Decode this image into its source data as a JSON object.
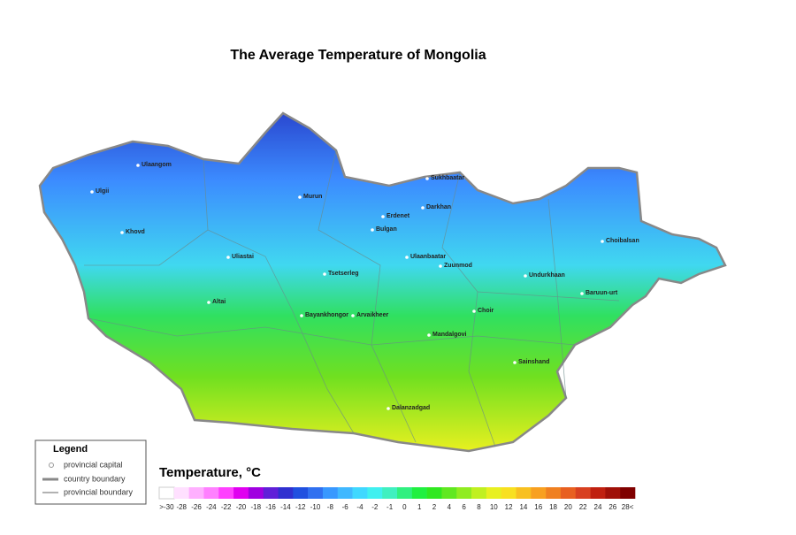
{
  "title": "The Average Temperature of Mongolia",
  "cities": [
    "Ulaangom",
    "Ulgii",
    "Khovd",
    "Uliastai",
    "Altai",
    "Murun",
    "Bulgan",
    "Erdenet",
    "Darkhan",
    "Sukhbaatar",
    "Ulaanbaatar",
    "Zuunmod",
    "Tsetserleg",
    "Bayankhongor",
    "Arvaikheer",
    "Undurkhaan",
    "Choibalsan",
    "Baruun-urt",
    "Choir",
    "Mandalgovi",
    "Sainshand",
    "Dalanzadgad"
  ],
  "legend": {
    "title": "Legend",
    "items": [
      "provincial capital",
      "country boundary",
      "provincial boundary"
    ]
  },
  "colorbar": {
    "title": "Temperature, °C",
    "labels": [
      ">-30",
      "-28",
      "-26",
      "-24",
      "-22",
      "-20",
      "-18",
      "-16",
      "-14",
      "-12",
      "-10",
      "-8",
      "-6",
      "-4",
      "-2",
      "-1",
      "0",
      "1",
      "2",
      "4",
      "6",
      "8",
      "10",
      "12",
      "14",
      "16",
      "18",
      "20",
      "22",
      "24",
      "26",
      "28<"
    ],
    "colors": [
      "#ffffff",
      "#ffe0ff",
      "#ffb0ff",
      "#ff80ff",
      "#ff40ff",
      "#e000f0",
      "#a000e0",
      "#6020d8",
      "#3030d0",
      "#2050e0",
      "#3070f0",
      "#3898ff",
      "#40b8ff",
      "#40d8ff",
      "#40f0f0",
      "#40f0c0",
      "#30f080",
      "#20f040",
      "#30e820",
      "#60e820",
      "#90ec20",
      "#c0f020",
      "#e8f020",
      "#f8e020",
      "#f8c020",
      "#f8a020",
      "#f08020",
      "#e86020",
      "#d84020",
      "#c02010",
      "#a01008",
      "#800000"
    ]
  }
}
